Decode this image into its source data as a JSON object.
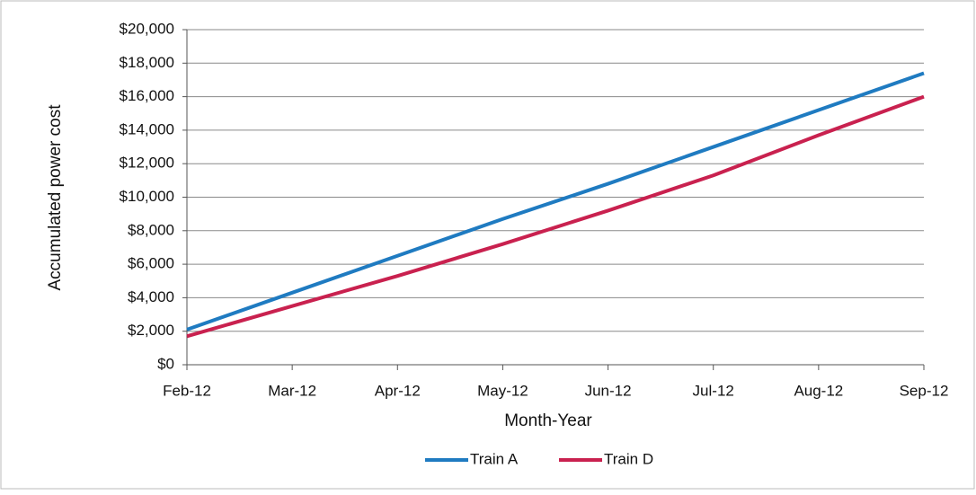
{
  "chart_data": {
    "type": "line",
    "x_label": "Month-Year",
    "y_label": "Accumulated power cost",
    "categories": [
      "Feb-12",
      "Mar-12",
      "Apr-12",
      "May-12",
      "Jun-12",
      "Jul-12",
      "Aug-12",
      "Sep-12"
    ],
    "series": [
      {
        "name": "Train A",
        "color": "#1f7bc1",
        "values": [
          2100,
          4300,
          6500,
          8700,
          10800,
          13000,
          15200,
          17400
        ]
      },
      {
        "name": "Train D",
        "color": "#c9214f",
        "values": [
          1700,
          3500,
          5300,
          7200,
          9200,
          11300,
          13700,
          16000
        ]
      }
    ],
    "ylim": [
      0,
      20000
    ],
    "yticks": [
      {
        "value": 0,
        "label": "$0"
      },
      {
        "value": 2000,
        "label": "$2,000"
      },
      {
        "value": 4000,
        "label": "$4,000"
      },
      {
        "value": 6000,
        "label": "$6,000"
      },
      {
        "value": 8000,
        "label": "$8,000"
      },
      {
        "value": 10000,
        "label": "$10,000"
      },
      {
        "value": 12000,
        "label": "$12,000"
      },
      {
        "value": 14000,
        "label": "$14,000"
      },
      {
        "value": 16000,
        "label": "$16,000"
      },
      {
        "value": 18000,
        "label": "$18,000"
      },
      {
        "value": 20000,
        "label": "$20,000"
      }
    ],
    "grid": true,
    "legend": "bottom"
  }
}
